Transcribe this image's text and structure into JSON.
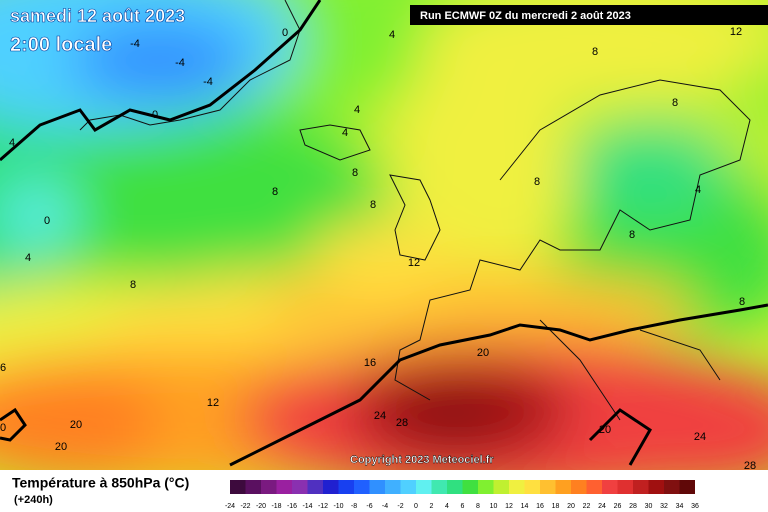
{
  "header": {
    "title": "samedi 12 août 2023",
    "subtitle": "2:00 locale",
    "run": "Run ECMWF 0Z du mercredi 2 août 2023"
  },
  "copyright": "Copyright 2023 Meteociel.fr",
  "legend": {
    "title": "Température à 850hPa (°C)",
    "subtitle": "(+240h)",
    "ticks": [
      -24,
      -22,
      -20,
      -18,
      -16,
      -14,
      -12,
      -10,
      -8,
      -6,
      -4,
      -2,
      0,
      2,
      4,
      6,
      8,
      10,
      12,
      14,
      16,
      18,
      20,
      22,
      24,
      26,
      28,
      30,
      32,
      34,
      36
    ],
    "colors": [
      "#3d0a3d",
      "#5a1060",
      "#7a1a80",
      "#9a20a0",
      "#8a30b0",
      "#5030c0",
      "#2020d0",
      "#1840f0",
      "#2060ff",
      "#3090ff",
      "#40b0ff",
      "#50d0ff",
      "#60f0f0",
      "#40e8b0",
      "#30e080",
      "#40e040",
      "#80f030",
      "#c0f030",
      "#f0f040",
      "#ffe040",
      "#ffc030",
      "#ffa020",
      "#ff8020",
      "#ff6030",
      "#f04040",
      "#e03030",
      "#c02020",
      "#a01010",
      "#801010",
      "#600808"
    ]
  },
  "map": {
    "contour_labels": [
      "4",
      "0",
      "-4",
      "-4",
      "-4",
      "0",
      "4",
      "4",
      "8",
      "8",
      "8",
      "4",
      "0",
      "4",
      "8",
      "12",
      "8",
      "8",
      "8",
      "8",
      "4",
      "8",
      "12",
      "16",
      "20",
      "12",
      "24",
      "28",
      "20",
      "20",
      "20",
      "24",
      "28",
      "0",
      "6"
    ]
  }
}
